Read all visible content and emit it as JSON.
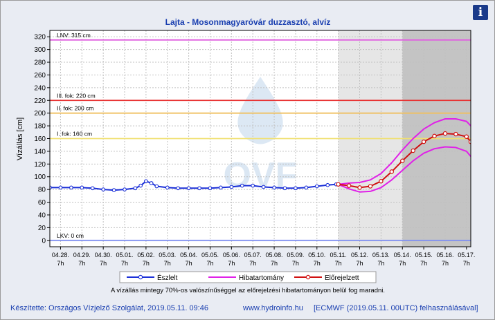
{
  "title": "Lajta - Mosonmagyaróvár duzzasztó, alvíz",
  "info_button_label": "i",
  "ylabel": "Vízállás [cm]",
  "note": "A vízállás mintegy 70%-os valószínűséggel az előrejelzési hibatartományon belül fog maradni.",
  "footer": {
    "left": "Készítette: Országos Vízjelző Szolgálat, 2019.05.11. 09:46",
    "center": "www.hydroinfo.hu",
    "right": "[ECMWF (2019.05.11. 00UTC) felhasználásával]"
  },
  "watermark": "OVF",
  "colors": {
    "observed": "#1a2fd8",
    "error_band": "#e020e8",
    "forecast": "#d01010",
    "lnv": "#e060e0",
    "level3": "#e83030",
    "level2": "#f0c060",
    "level1": "#f0e070",
    "lkv": "#8090f0",
    "title": "#1a3fb0"
  },
  "chart_data": {
    "type": "line",
    "title": "Lajta - Mosonmagyaróvár duzzasztó, alvíz",
    "ylabel": "Vízállás [cm]",
    "ylim": [
      -10,
      330
    ],
    "yticks": [
      0,
      20,
      40,
      60,
      80,
      100,
      120,
      140,
      160,
      180,
      200,
      220,
      240,
      260,
      280,
      300,
      320
    ],
    "x_unit": "days since 04.28. 7h (axis labelled by date at 7h)",
    "xlim": [
      -0.5,
      19.2
    ],
    "xticks": [
      {
        "x": 0,
        "date": "04.28.",
        "hour": "7h"
      },
      {
        "x": 1,
        "date": "04.29.",
        "hour": "7h"
      },
      {
        "x": 2,
        "date": "04.30.",
        "hour": "7h"
      },
      {
        "x": 3,
        "date": "05.01.",
        "hour": "7h"
      },
      {
        "x": 4,
        "date": "05.02.",
        "hour": "7h"
      },
      {
        "x": 5,
        "date": "05.03.",
        "hour": "7h"
      },
      {
        "x": 6,
        "date": "05.04.",
        "hour": "7h"
      },
      {
        "x": 7,
        "date": "05.05.",
        "hour": "7h"
      },
      {
        "x": 8,
        "date": "05.06.",
        "hour": "7h"
      },
      {
        "x": 9,
        "date": "05.07.",
        "hour": "7h"
      },
      {
        "x": 10,
        "date": "05.08.",
        "hour": "7h"
      },
      {
        "x": 11,
        "date": "05.09.",
        "hour": "7h"
      },
      {
        "x": 12,
        "date": "05.10.",
        "hour": "7h"
      },
      {
        "x": 13,
        "date": "05.11.",
        "hour": "7h"
      },
      {
        "x": 14,
        "date": "05.12.",
        "hour": "7h"
      },
      {
        "x": 15,
        "date": "05.13.",
        "hour": "7h"
      },
      {
        "x": 16,
        "date": "05.14.",
        "hour": "7h"
      },
      {
        "x": 17,
        "date": "05.15.",
        "hour": "7h"
      },
      {
        "x": 18,
        "date": "05.16.",
        "hour": "7h"
      },
      {
        "x": 19,
        "date": "05.17.",
        "hour": "7h"
      }
    ],
    "forecast_region": {
      "light_start": 13,
      "dark_start": 16
    },
    "reference_lines": [
      {
        "name": "LNV",
        "label": "LNV: 315 cm",
        "value": 315,
        "color": "#e060e0"
      },
      {
        "name": "level3",
        "label": "III. fok: 220 cm",
        "value": 220,
        "color": "#e83030"
      },
      {
        "name": "level2",
        "label": "II. fok: 200 cm",
        "value": 200,
        "color": "#f0c060"
      },
      {
        "name": "level1",
        "label": "I. fok: 160 cm",
        "value": 160,
        "color": "#f0e070"
      },
      {
        "name": "LKV",
        "label": "LKV: 0 cm",
        "value": 0,
        "color": "#8090f0"
      }
    ],
    "legend": [
      {
        "name": "Észlelt",
        "color": "#1a2fd8"
      },
      {
        "name": "Hibatartomány",
        "color": "#e020e8"
      },
      {
        "name": "Előrejelzett",
        "color": "#d01010"
      }
    ],
    "legend_position": "bottom",
    "observed": {
      "name": "Észlelt",
      "x": [
        -0.5,
        0,
        0.5,
        1,
        1.5,
        2,
        2.5,
        3,
        3.5,
        3.75,
        4,
        4.25,
        4.5,
        5,
        5.5,
        6,
        6.5,
        7,
        7.5,
        8,
        8.5,
        9,
        9.5,
        10,
        10.5,
        11,
        11.5,
        12,
        12.5,
        12.9
      ],
      "y": [
        83,
        83,
        83,
        83,
        82,
        80,
        79,
        80,
        82,
        86,
        93,
        90,
        85,
        83,
        82,
        82,
        82,
        82,
        83,
        84,
        86,
        86,
        84,
        83,
        82,
        82,
        83,
        85,
        87,
        88
      ]
    },
    "forecast": {
      "name": "Előrejelzett",
      "x": [
        13,
        13.5,
        14,
        14.5,
        15,
        15.5,
        16,
        16.5,
        17,
        17.5,
        18,
        18.5,
        19,
        19.2
      ],
      "y": [
        88,
        86,
        83,
        85,
        93,
        108,
        125,
        141,
        155,
        164,
        168,
        167,
        163,
        155
      ]
    },
    "error_band_upper": {
      "name": "Hibatartomány",
      "x": [
        13,
        13.5,
        14,
        14.5,
        15,
        15.5,
        16,
        16.5,
        17,
        17.5,
        18,
        18.5,
        19,
        19.2
      ],
      "y": [
        88,
        90,
        91,
        95,
        105,
        122,
        142,
        160,
        175,
        185,
        191,
        191,
        187,
        180
      ]
    },
    "error_band_lower": {
      "name": "Hibatartomány",
      "x": [
        13,
        13.5,
        14,
        14.5,
        15,
        15.5,
        16,
        16.5,
        17,
        17.5,
        18,
        18.5,
        19,
        19.2
      ],
      "y": [
        88,
        81,
        76,
        77,
        83,
        95,
        110,
        125,
        137,
        144,
        147,
        146,
        140,
        132
      ]
    }
  }
}
